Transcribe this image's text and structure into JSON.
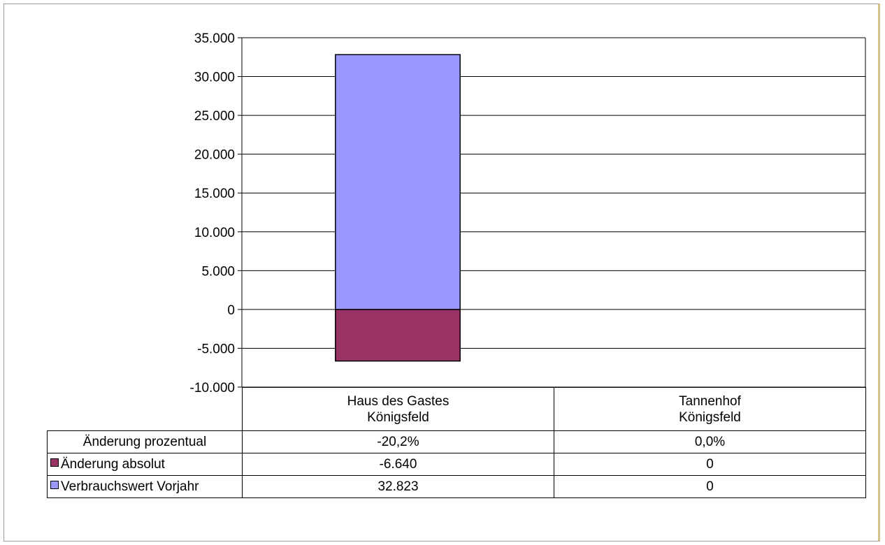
{
  "chart_data": {
    "type": "bar",
    "stacked": true,
    "categories": [
      "Haus des Gastes Königsfeld",
      "Tannenhof Königsfeld"
    ],
    "category_lines": [
      [
        "Haus des Gastes",
        "Königsfeld"
      ],
      [
        "Tannenhof",
        "Königsfeld"
      ]
    ],
    "series": [
      {
        "name": "Änderung absolut",
        "values": [
          -6640,
          0
        ],
        "color": "#993366"
      },
      {
        "name": "Verbrauchswert Vorjahr",
        "values": [
          32823,
          0
        ],
        "color": "#9999ff"
      }
    ],
    "ylim": [
      -10000,
      35000
    ],
    "yticks": [
      35000,
      30000,
      25000,
      20000,
      15000,
      10000,
      5000,
      0,
      -5000,
      -10000
    ],
    "ytick_labels": [
      "35.000",
      "30.000",
      "25.000",
      "20.000",
      "15.000",
      "10.000",
      "5.000",
      "0",
      "-5.000",
      "-10.000"
    ],
    "grid": true,
    "data_table": {
      "rows": [
        {
          "label": "Änderung prozentual",
          "key": false,
          "values": [
            "-20,2%",
            "0,0%"
          ]
        },
        {
          "label": "Änderung absolut",
          "key": true,
          "color": "#993366",
          "values": [
            "-6.640",
            "0"
          ]
        },
        {
          "label": "Verbrauchswert Vorjahr",
          "key": true,
          "color": "#9999ff",
          "values": [
            "32.823",
            "0"
          ]
        }
      ]
    }
  }
}
